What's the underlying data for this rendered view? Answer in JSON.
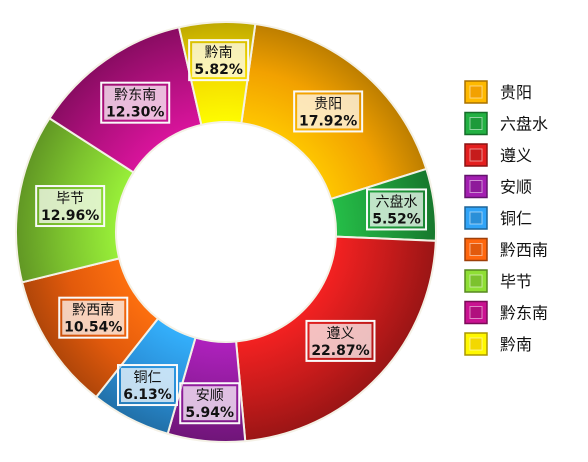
{
  "chart_data": {
    "type": "pie",
    "title": "",
    "categories": [
      "贵阳",
      "六盘水",
      "遵义",
      "安顺",
      "铜仁",
      "黔西南",
      "毕节",
      "黔东南",
      "黔南"
    ],
    "values": [
      17.92,
      5.52,
      22.87,
      5.94,
      6.13,
      10.54,
      12.96,
      12.3,
      5.82
    ],
    "value_labels": [
      "17.92%",
      "5.52%",
      "22.87%",
      "5.94%",
      "6.13%",
      "10.54%",
      "12.96%",
      "12.30%",
      "5.82%"
    ],
    "colors": [
      "#f2a100",
      "#1e9a3a",
      "#c61b1b",
      "#8e1b9a",
      "#2a8fd8",
      "#e25a0c",
      "#7cc22e",
      "#b0107e",
      "#f3d800"
    ],
    "donut": true,
    "legend_position": "right",
    "legend": [
      "贵阳",
      "六盘水",
      "遵义",
      "安顺",
      "铜仁",
      "黔西南",
      "毕节",
      "黔东南",
      "黔南"
    ]
  }
}
